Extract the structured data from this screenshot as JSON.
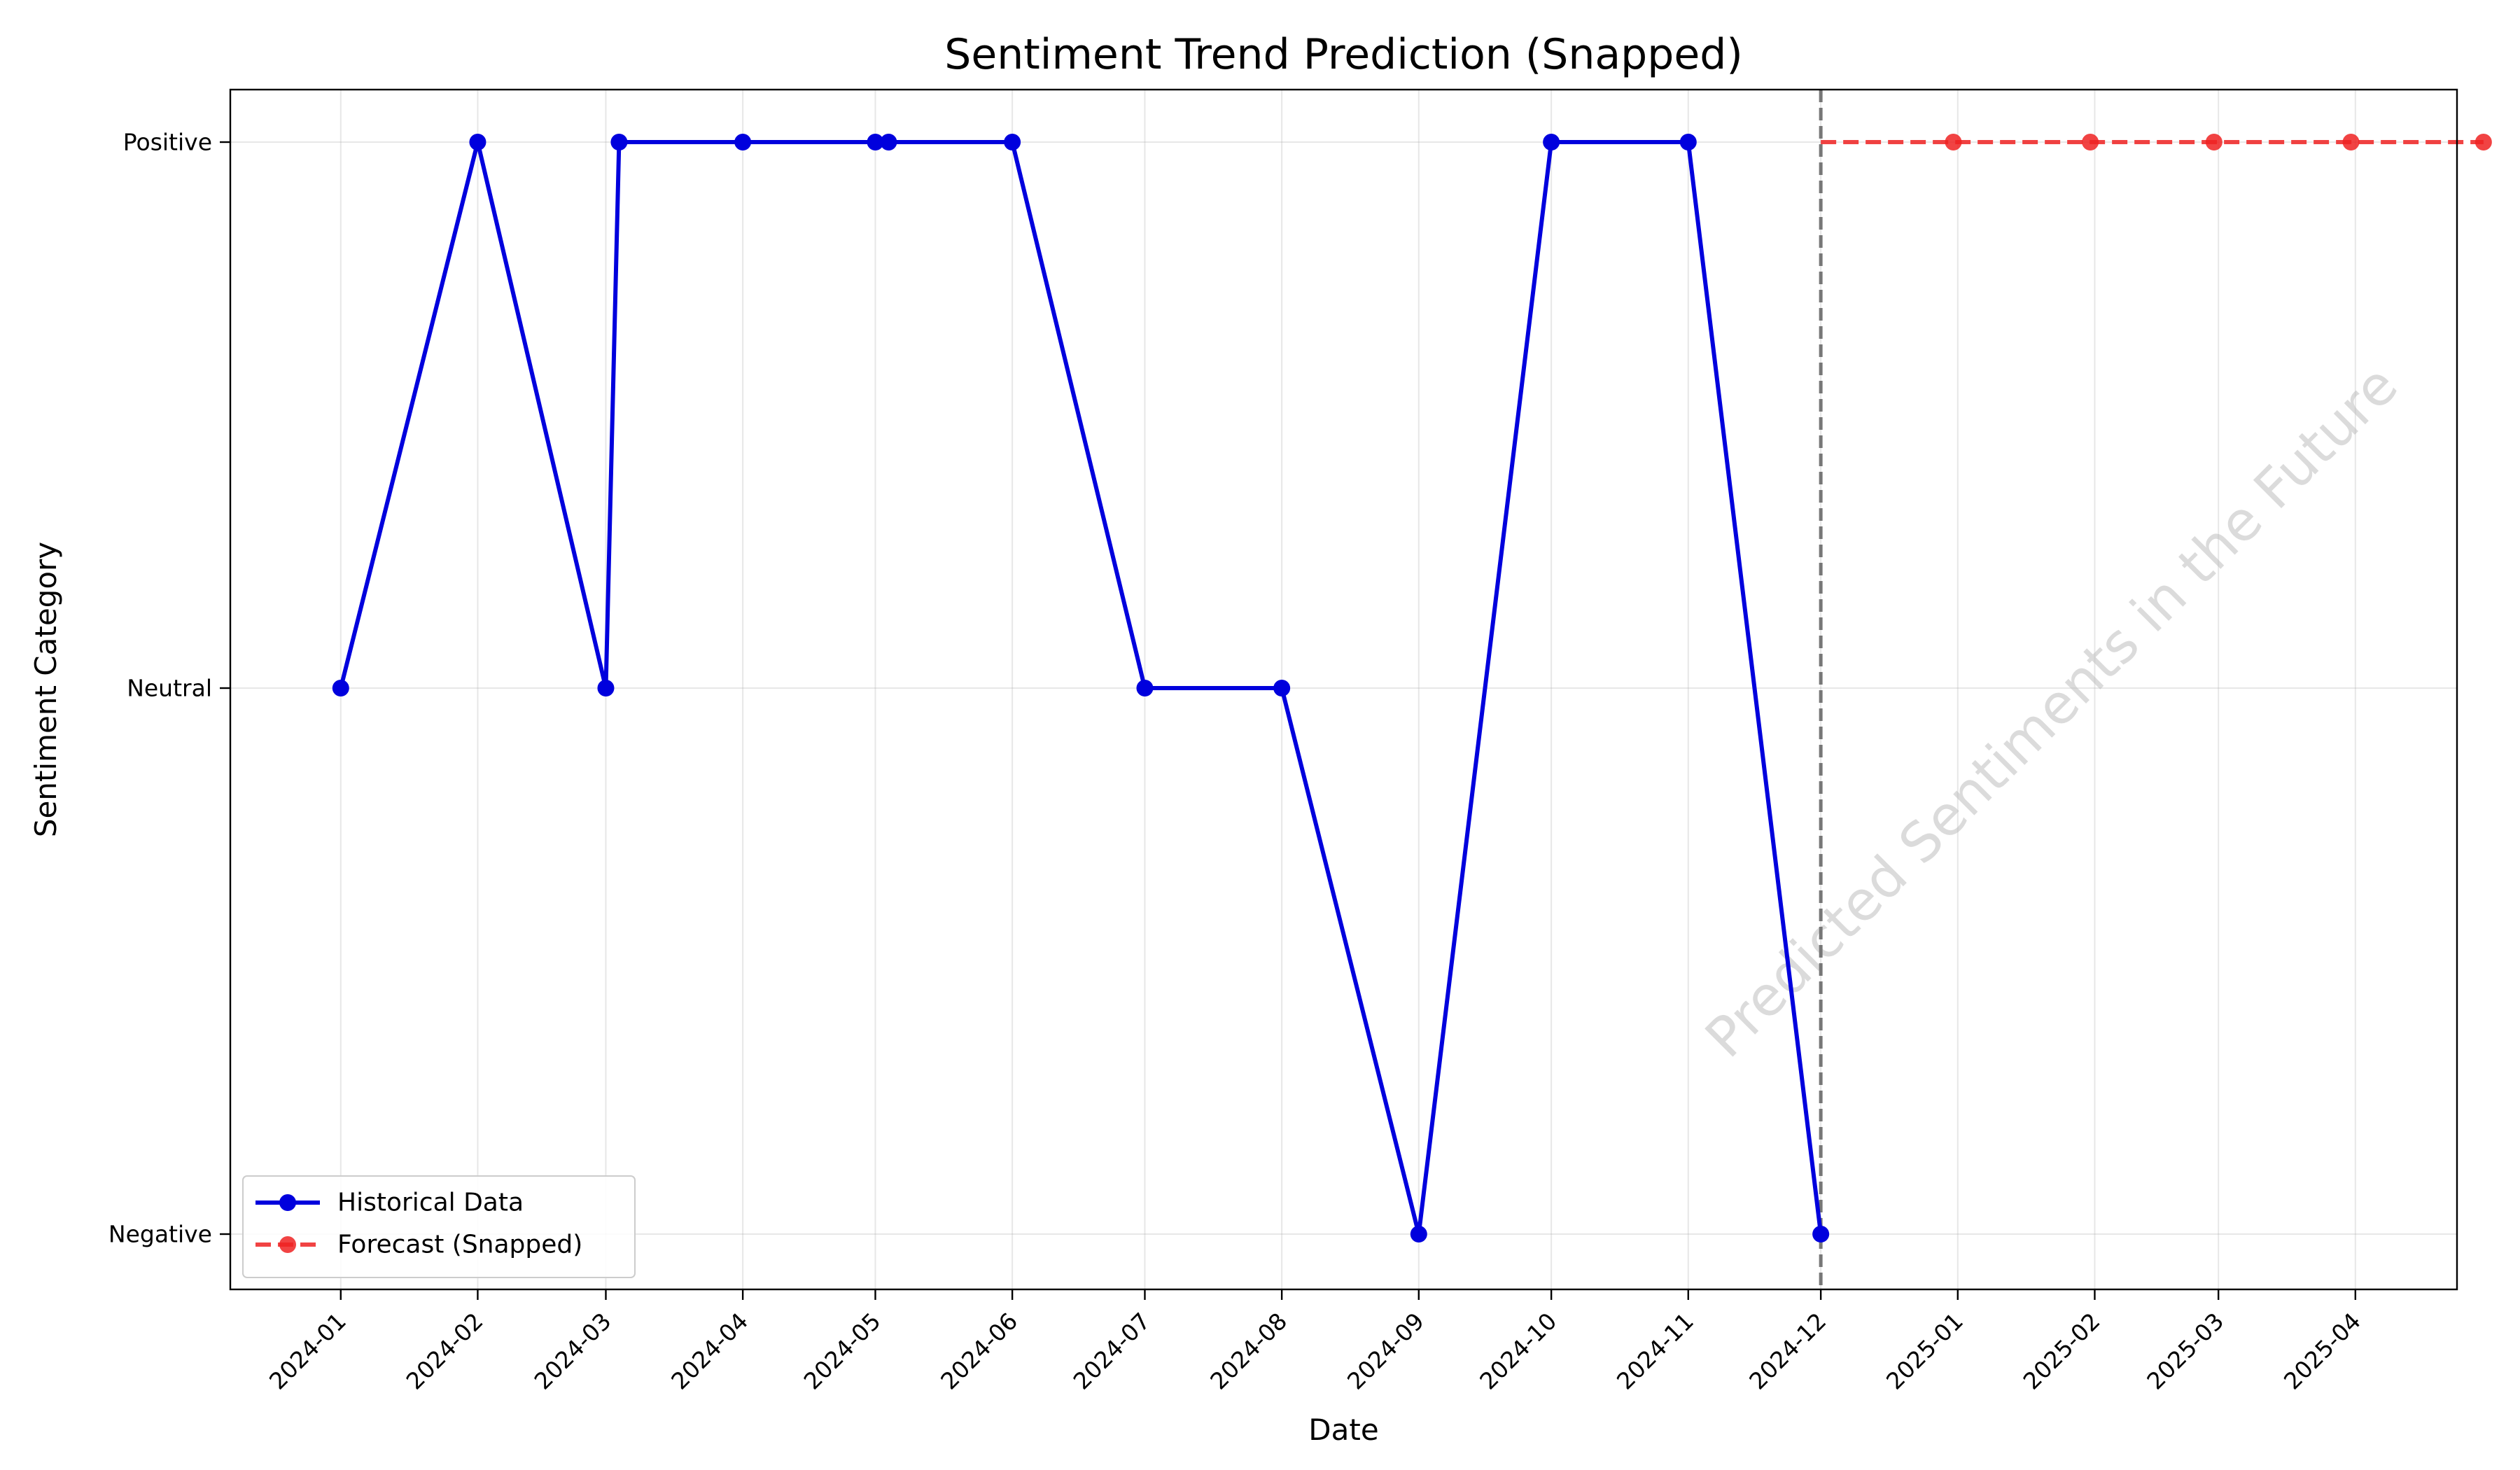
{
  "chart_data": {
    "type": "line",
    "title": "Sentiment Trend Prediction (Snapped)",
    "xlabel": "Date",
    "ylabel": "Sentiment Category",
    "y_categories": [
      "Negative",
      "Neutral",
      "Positive"
    ],
    "x_tick_labels": [
      "2024-01",
      "2024-02",
      "2024-03",
      "2024-04",
      "2024-05",
      "2024-06",
      "2024-07",
      "2024-08",
      "2024-09",
      "2024-10",
      "2024-11",
      "2024-12",
      "2025-01",
      "2025-02",
      "2025-03",
      "2025-04"
    ],
    "x_range": [
      "2023-12-07",
      "2025-04-24"
    ],
    "grid": true,
    "legend_position": "lower-left",
    "series": [
      {
        "name": "Historical Data",
        "color": "#0000dd",
        "style": "solid",
        "x": [
          "2024-01-01",
          "2024-02-01",
          "2024-03-01",
          "2024-03-04",
          "2024-04-01",
          "2024-05-01",
          "2024-05-04",
          "2024-06-01",
          "2024-07-01",
          "2024-08-01",
          "2024-09-01",
          "2024-10-01",
          "2024-11-01",
          "2024-12-01"
        ],
        "values": [
          "Neutral",
          "Positive",
          "Neutral",
          "Positive",
          "Positive",
          "Positive",
          "Positive",
          "Positive",
          "Neutral",
          "Neutral",
          "Negative",
          "Positive",
          "Positive",
          "Negative"
        ]
      },
      {
        "name": "Forecast (Snapped)",
        "color": "#ee2222",
        "style": "dashed",
        "x": [
          "2024-12-01",
          "2024-12-31",
          "2025-01-31",
          "2025-02-28",
          "2025-03-31",
          "2025-04-30"
        ],
        "values": [
          "Positive",
          "Positive",
          "Positive",
          "Positive",
          "Positive",
          "Positive"
        ]
      }
    ],
    "vline_x": "2024-12-01",
    "annotation": "Predicted Sentiments in the Future"
  }
}
